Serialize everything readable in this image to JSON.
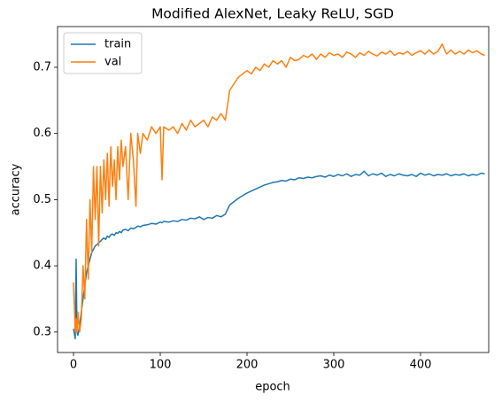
{
  "chart_data": {
    "type": "line",
    "title": "Modified AlexNet, Leaky ReLU, SGD",
    "x_label": "epoch",
    "y_label": "accuracy",
    "x": [
      0,
      2,
      3,
      4,
      5,
      7,
      9,
      11,
      13,
      15,
      17,
      19,
      21,
      23,
      25,
      27,
      29,
      31,
      33,
      35,
      37,
      39,
      41,
      43,
      45,
      47,
      49,
      51,
      53,
      55,
      57,
      60,
      63,
      66,
      69,
      72,
      74,
      77,
      80,
      85,
      90,
      95,
      100,
      102,
      104,
      110,
      115,
      120,
      125,
      130,
      135,
      140,
      145,
      150,
      155,
      160,
      165,
      170,
      175,
      180,
      185,
      190,
      195,
      200,
      205,
      210,
      215,
      220,
      225,
      230,
      235,
      240,
      245,
      250,
      255,
      260,
      265,
      270,
      275,
      280,
      285,
      290,
      295,
      300,
      305,
      310,
      315,
      320,
      325,
      330,
      335,
      340,
      345,
      350,
      355,
      360,
      365,
      370,
      375,
      380,
      385,
      390,
      395,
      400,
      405,
      410,
      415,
      420,
      425,
      430,
      435,
      440,
      445,
      450,
      455,
      460,
      465,
      470,
      474
    ],
    "series": [
      {
        "name": "train",
        "color": "#1f77b4",
        "values": [
          0.305,
          0.29,
          0.41,
          0.3,
          0.295,
          0.31,
          0.33,
          0.35,
          0.37,
          0.39,
          0.4,
          0.41,
          0.42,
          0.425,
          0.43,
          0.432,
          0.435,
          0.437,
          0.44,
          0.442,
          0.44,
          0.445,
          0.443,
          0.447,
          0.448,
          0.446,
          0.45,
          0.449,
          0.452,
          0.45,
          0.454,
          0.455,
          0.453,
          0.457,
          0.456,
          0.458,
          0.46,
          0.459,
          0.461,
          0.462,
          0.464,
          0.463,
          0.466,
          0.465,
          0.467,
          0.466,
          0.468,
          0.467,
          0.47,
          0.469,
          0.472,
          0.471,
          0.474,
          0.47,
          0.473,
          0.472,
          0.476,
          0.474,
          0.478,
          0.492,
          0.497,
          0.502,
          0.506,
          0.51,
          0.513,
          0.516,
          0.519,
          0.522,
          0.524,
          0.526,
          0.527,
          0.529,
          0.528,
          0.531,
          0.53,
          0.533,
          0.532,
          0.534,
          0.533,
          0.535,
          0.536,
          0.534,
          0.537,
          0.535,
          0.538,
          0.536,
          0.539,
          0.535,
          0.538,
          0.537,
          0.543,
          0.536,
          0.539,
          0.537,
          0.54,
          0.535,
          0.538,
          0.536,
          0.539,
          0.537,
          0.536,
          0.538,
          0.535,
          0.54,
          0.537,
          0.539,
          0.536,
          0.538,
          0.537,
          0.539,
          0.536,
          0.538,
          0.537,
          0.539,
          0.536,
          0.538,
          0.537,
          0.54,
          0.539
        ]
      },
      {
        "name": "val",
        "color": "#ff7f0e",
        "values": [
          0.375,
          0.3,
          0.32,
          0.3,
          0.33,
          0.3,
          0.32,
          0.4,
          0.35,
          0.47,
          0.38,
          0.5,
          0.42,
          0.55,
          0.47,
          0.55,
          0.43,
          0.55,
          0.48,
          0.56,
          0.5,
          0.57,
          0.49,
          0.58,
          0.52,
          0.56,
          0.5,
          0.58,
          0.53,
          0.59,
          0.55,
          0.58,
          0.5,
          0.6,
          0.56,
          0.49,
          0.6,
          0.57,
          0.6,
          0.59,
          0.61,
          0.6,
          0.61,
          0.53,
          0.61,
          0.605,
          0.61,
          0.6,
          0.615,
          0.605,
          0.62,
          0.61,
          0.615,
          0.62,
          0.61,
          0.625,
          0.62,
          0.63,
          0.62,
          0.665,
          0.675,
          0.685,
          0.69,
          0.695,
          0.69,
          0.7,
          0.695,
          0.705,
          0.7,
          0.71,
          0.705,
          0.71,
          0.7,
          0.715,
          0.71,
          0.712,
          0.718,
          0.715,
          0.72,
          0.712,
          0.72,
          0.715,
          0.722,
          0.718,
          0.72,
          0.715,
          0.723,
          0.72,
          0.715,
          0.722,
          0.718,
          0.724,
          0.72,
          0.717,
          0.723,
          0.72,
          0.725,
          0.718,
          0.722,
          0.72,
          0.724,
          0.718,
          0.722,
          0.725,
          0.72,
          0.726,
          0.72,
          0.724,
          0.735,
          0.72,
          0.726,
          0.72,
          0.724,
          0.72,
          0.726,
          0.722,
          0.725,
          0.72,
          0.718
        ]
      }
    ],
    "xlim": [
      -18.4,
      478.6
    ],
    "ylim": [
      0.269,
      0.7615
    ],
    "xticks": [
      0,
      100,
      200,
      300,
      400
    ],
    "yticks": [
      0.3,
      0.4,
      0.5,
      0.6,
      0.7
    ],
    "legend": "upper left"
  }
}
